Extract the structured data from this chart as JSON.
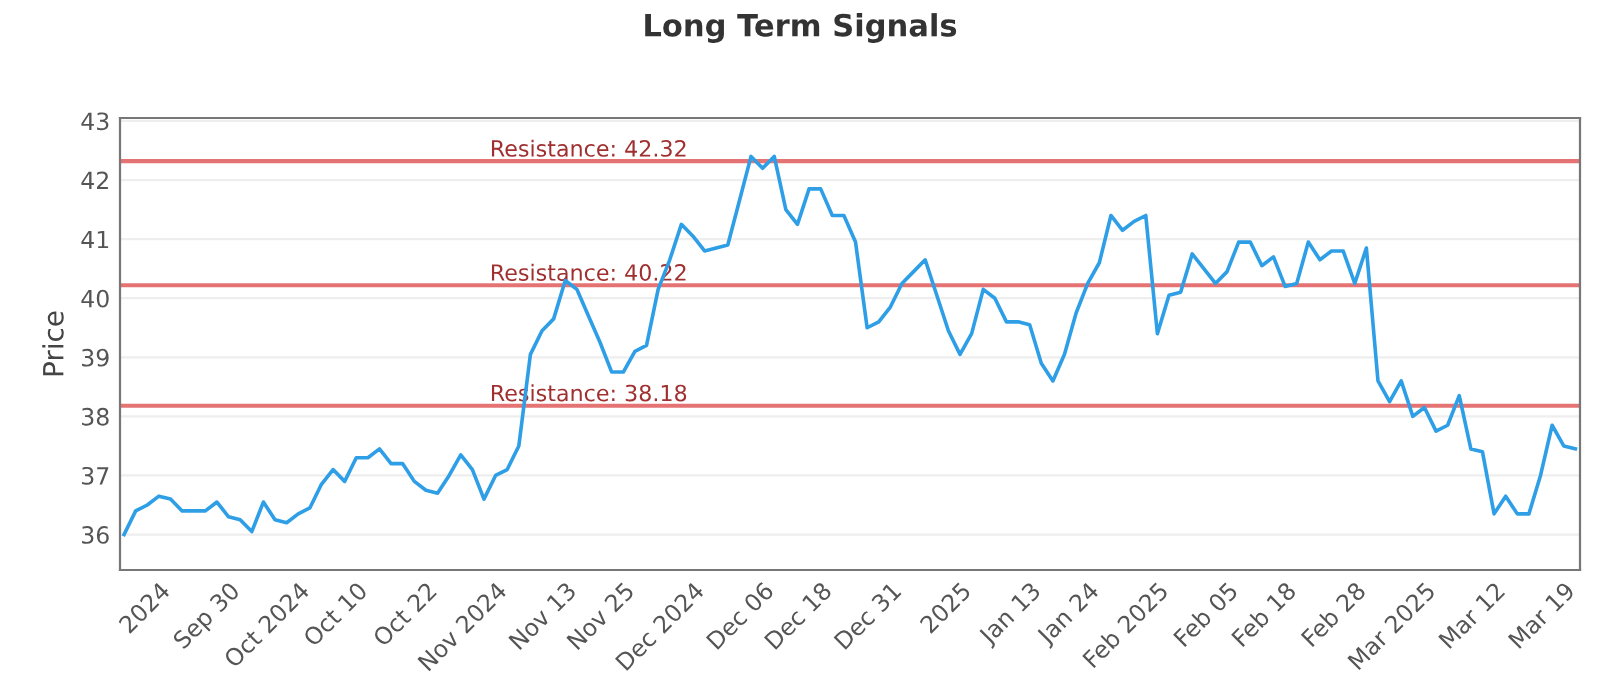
{
  "chart_data": {
    "type": "line",
    "title": "Long Term Signals",
    "ylabel": "Price",
    "categories": [
      null,
      null,
      null,
      "2024",
      null,
      null,
      null,
      null,
      null,
      "Sep 30",
      null,
      null,
      null,
      null,
      null,
      "Oct 2024",
      null,
      null,
      null,
      null,
      "Oct 10",
      null,
      null,
      null,
      null,
      null,
      "Oct 22",
      null,
      null,
      null,
      null,
      null,
      "Nov 2024",
      null,
      null,
      null,
      null,
      null,
      "Nov 13",
      null,
      null,
      null,
      null,
      "Nov 25",
      null,
      null,
      null,
      null,
      null,
      "Dec 2024",
      null,
      null,
      null,
      null,
      null,
      "Dec 06",
      null,
      null,
      null,
      null,
      "Dec 18",
      null,
      null,
      null,
      null,
      null,
      "Dec 31",
      null,
      null,
      null,
      null,
      null,
      "2025",
      null,
      null,
      null,
      null,
      null,
      "Jan 13",
      null,
      null,
      null,
      null,
      "Jan 24",
      null,
      null,
      null,
      null,
      null,
      "Feb 2025",
      null,
      null,
      null,
      null,
      null,
      "Feb 05",
      null,
      null,
      null,
      null,
      "Feb 18",
      null,
      null,
      null,
      null,
      null,
      "Feb 28",
      null,
      null,
      null,
      null,
      null,
      "Mar 2025",
      null,
      null,
      null,
      null,
      null,
      "Mar 12",
      null,
      null,
      null,
      null,
      null,
      "Mar 19",
      null
    ],
    "series": [
      {
        "color": "#2e9fe6",
        "values": [
          36.0,
          36.4,
          36.5,
          36.65,
          36.6,
          36.4,
          36.4,
          36.4,
          36.55,
          36.3,
          36.25,
          36.05,
          36.55,
          36.25,
          36.2,
          36.35,
          36.45,
          36.85,
          37.1,
          36.9,
          37.3,
          37.3,
          37.45,
          37.2,
          37.2,
          36.9,
          36.75,
          36.7,
          37.0,
          37.35,
          37.1,
          36.6,
          37.0,
          37.1,
          37.5,
          39.05,
          39.45,
          39.65,
          40.3,
          40.15,
          39.7,
          39.25,
          38.75,
          38.75,
          39.1,
          39.2,
          40.15,
          40.65,
          41.25,
          41.05,
          40.8,
          40.85,
          40.9,
          41.65,
          42.4,
          42.2,
          42.4,
          41.5,
          41.25,
          41.85,
          41.85,
          41.4,
          41.4,
          40.95,
          39.5,
          39.6,
          39.85,
          40.25,
          40.45,
          40.65,
          40.05,
          39.45,
          39.05,
          39.4,
          40.15,
          40.0,
          39.6,
          39.6,
          39.55,
          38.9,
          38.6,
          39.05,
          39.75,
          40.25,
          40.6,
          41.4,
          41.15,
          41.3,
          41.4,
          39.4,
          40.05,
          40.1,
          40.75,
          40.5,
          40.25,
          40.45,
          40.95,
          40.95,
          40.55,
          40.7,
          40.2,
          40.25,
          40.95,
          40.65,
          40.8,
          40.8,
          40.25,
          40.85,
          38.6,
          38.25,
          38.6,
          38.0,
          38.15,
          37.75,
          37.85,
          38.35,
          37.45,
          37.4,
          36.35,
          36.65,
          36.35,
          36.35,
          37.0,
          37.85,
          37.5,
          37.45
        ]
      }
    ],
    "ylim": [
      35.4,
      43.05
    ],
    "yticks": [
      36,
      37,
      38,
      39,
      40,
      41,
      42,
      43
    ],
    "grid": "y",
    "marker": "none",
    "line_style": "solid",
    "ref_lines": [
      {
        "axis": "y",
        "value": 42.32,
        "label": "Resistance: 42.32",
        "color": "#e57373"
      },
      {
        "axis": "y",
        "value": 40.22,
        "label": "Resistance: 40.22",
        "color": "#e57373"
      },
      {
        "axis": "y",
        "value": 38.18,
        "label": "Resistance: 38.18",
        "color": "#e57373"
      }
    ]
  }
}
